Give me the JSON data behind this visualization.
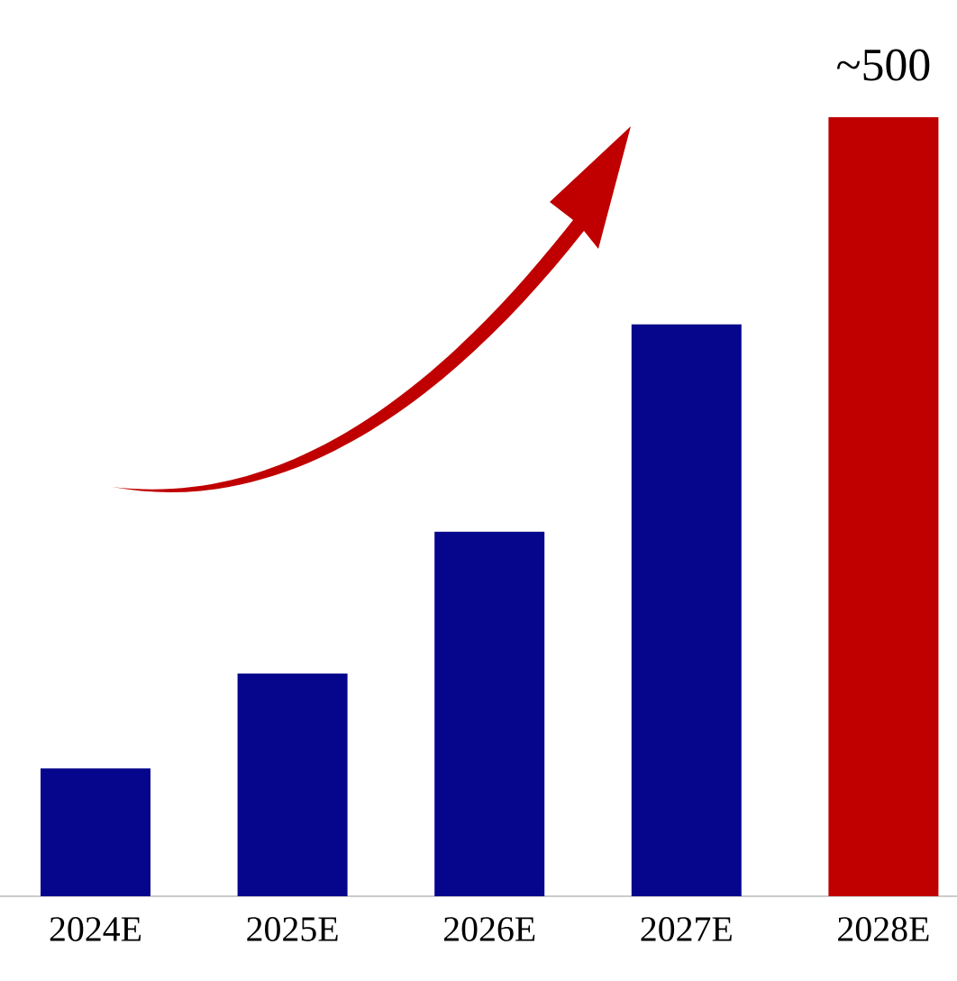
{
  "chart_data": {
    "type": "bar",
    "categories": [
      "2024E",
      "2025E",
      "2026E",
      "2027E",
      "2028E"
    ],
    "values": [
      82,
      143,
      234,
      367,
      500
    ],
    "colors": [
      "#06068c",
      "#06068c",
      "#06068c",
      "#06068c",
      "#c00000"
    ],
    "value_labels": [
      null,
      null,
      null,
      null,
      "~500"
    ]
  }
}
